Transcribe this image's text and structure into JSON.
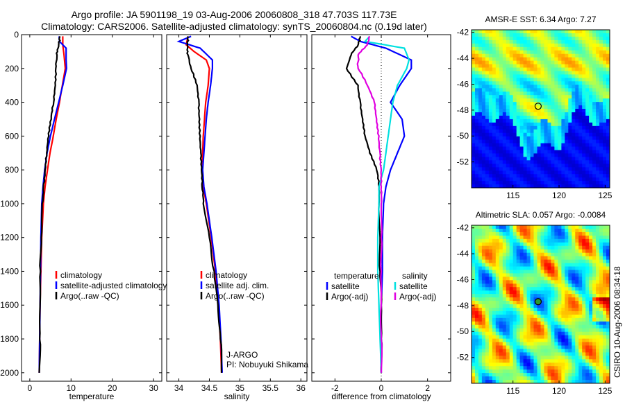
{
  "header": {
    "title_line1": "Argo profile: JA 5901198_19 03-Aug-2006 20060808_318 47.703S 117.73E",
    "title_line2": "Climatology: CARS2006. Satellite-adjusted climatology: synTS_20060804.nc (0.19d later)"
  },
  "side_label": "CSIRO 10-Aug-2006 08:34:18",
  "colors": {
    "climatology": "#ff0000",
    "satellite": "#0000ff",
    "argo": "#000000",
    "salinity_satellite": "#00e0e0",
    "salinity_argo": "#e000e0"
  },
  "chart_data": [
    {
      "type": "line",
      "id": "temperature",
      "xlabel": "temperature",
      "ylabel": "",
      "xlim": [
        -2,
        32
      ],
      "ylim": [
        2050,
        0
      ],
      "xticks": [
        0,
        10,
        20,
        30
      ],
      "yticks": [
        0,
        200,
        400,
        600,
        800,
        1000,
        1200,
        1400,
        1600,
        1800,
        2000
      ],
      "legend": {
        "position": "lower-right",
        "entries": [
          "climatology",
          "satellite-adjusted climatology",
          "Argo(..raw -QC)"
        ]
      },
      "series": [
        {
          "name": "climatology",
          "color": "#ff0000",
          "depth": [
            10,
            60,
            120,
            200,
            300,
            400,
            500,
            600,
            700,
            800,
            900,
            1000,
            1200,
            1400,
            1600,
            1800,
            2000
          ],
          "values": [
            8.0,
            8.0,
            8.3,
            8.6,
            7.9,
            7.2,
            6.4,
            5.7,
            4.9,
            4.3,
            3.7,
            3.3,
            2.9,
            2.7,
            2.5,
            2.4,
            2.3
          ]
        },
        {
          "name": "satellite-adjusted climatology",
          "color": "#0000ff",
          "depth": [
            10,
            40,
            80,
            150,
            200,
            300,
            400,
            500,
            600,
            700,
            800,
            900,
            1000,
            1200,
            1400,
            1600,
            1800,
            2000
          ],
          "values": [
            7.1,
            7.2,
            8.8,
            8.8,
            8.9,
            8.0,
            7.0,
            6.0,
            5.0,
            4.2,
            3.6,
            3.2,
            2.9,
            2.7,
            2.6,
            2.5,
            2.4,
            2.3
          ]
        },
        {
          "name": "Argo(..raw -QC)",
          "color": "#000000",
          "depth": [
            10,
            60,
            120,
            200,
            300,
            400,
            500,
            600,
            700,
            800,
            900,
            1000,
            1200,
            1400,
            1600,
            1800,
            2000
          ],
          "values": [
            7.3,
            7.0,
            6.6,
            6.3,
            6.2,
            5.8,
            5.2,
            4.6,
            4.1,
            3.7,
            3.3,
            3.0,
            2.8,
            2.6,
            2.5,
            2.4,
            2.3
          ]
        }
      ]
    },
    {
      "type": "line",
      "id": "salinity",
      "xlabel": "salinity",
      "ylabel": "",
      "xlim": [
        33.8,
        36.1
      ],
      "ylim": [
        2050,
        0
      ],
      "xticks": [
        34,
        34.5,
        35,
        35.5,
        36
      ],
      "legend": {
        "position": "lower-right",
        "entries": [
          "climatology",
          "satellite adj. clim.",
          "Argo(..raw -QC)"
        ]
      },
      "annotation": [
        "J-ARGO",
        "PI: Nobuyuki Shikama"
      ],
      "series": [
        {
          "name": "climatology",
          "color": "#ff0000",
          "depth": [
            10,
            60,
            100,
            150,
            200,
            300,
            400,
            500,
            600,
            700,
            800,
            900,
            1000,
            1200,
            1400,
            1600,
            1800,
            2000
          ],
          "values": [
            34.15,
            34.12,
            34.25,
            34.45,
            34.5,
            34.48,
            34.44,
            34.42,
            34.4,
            34.39,
            34.38,
            34.4,
            34.45,
            34.53,
            34.6,
            34.65,
            34.68,
            34.7
          ]
        },
        {
          "name": "satellite adj. clim.",
          "color": "#0000ff",
          "depth": [
            10,
            40,
            80,
            150,
            200,
            300,
            400,
            500,
            600,
            700,
            800,
            900,
            1000,
            1200,
            1400,
            1600,
            1800,
            2000
          ],
          "values": [
            34.2,
            34.0,
            34.35,
            34.55,
            34.55,
            34.52,
            34.48,
            34.45,
            34.43,
            34.41,
            34.39,
            34.41,
            34.46,
            34.54,
            34.61,
            34.66,
            34.69,
            34.71
          ]
        },
        {
          "name": "Argo(..raw -QC)",
          "color": "#000000",
          "depth": [
            10,
            60,
            120,
            200,
            300,
            400,
            500,
            600,
            700,
            800,
            900,
            1000,
            1200,
            1400,
            1600,
            1800,
            2000
          ],
          "values": [
            34.15,
            34.14,
            34.15,
            34.2,
            34.3,
            34.33,
            34.34,
            34.35,
            34.36,
            34.37,
            34.38,
            34.4,
            34.5,
            34.58,
            34.64,
            34.68,
            34.7
          ]
        }
      ]
    },
    {
      "type": "line",
      "id": "difference",
      "xlabel": "difference from climatology",
      "ylabel": "",
      "xlim": [
        -3,
        3
      ],
      "ylim": [
        2050,
        0
      ],
      "xticks": [
        -2,
        0,
        2
      ],
      "legend": {
        "position": "lower-center",
        "groups": [
          {
            "title": "temperature",
            "entries": [
              "satellite",
              "Argo(-adj)"
            ]
          },
          {
            "title": "salinity",
            "entries": [
              "satellite",
              "Argo(-adj)"
            ]
          }
        ]
      },
      "series": [
        {
          "name": "temperature satellite",
          "color": "#0000ff",
          "depth": [
            10,
            40,
            80,
            150,
            200,
            300,
            400,
            500,
            600,
            700,
            800,
            900,
            1000,
            1200,
            1400,
            1600,
            1800,
            2000
          ],
          "values": [
            -1.3,
            -0.9,
            0.2,
            1.3,
            1.3,
            0.8,
            0.4,
            0.9,
            1.0,
            0.7,
            0.4,
            0.2,
            0.1,
            0.05,
            0.05,
            0.0,
            0.0,
            0.0
          ]
        },
        {
          "name": "temperature Argo(-adj)",
          "color": "#000000",
          "depth": [
            10,
            60,
            120,
            200,
            300,
            400,
            500,
            600,
            700,
            800,
            900,
            1000,
            1200,
            1400,
            1600,
            1800,
            2000
          ],
          "values": [
            -0.9,
            -1.0,
            -1.3,
            -1.5,
            -1.0,
            -0.9,
            -0.8,
            -0.7,
            -0.5,
            -0.2,
            -0.1,
            -0.1,
            -0.05,
            -0.05,
            0.0,
            0.0,
            0.0
          ]
        },
        {
          "name": "salinity satellite",
          "color": "#00e0e0",
          "depth": [
            10,
            40,
            80,
            150,
            200,
            300,
            400,
            500,
            600,
            700,
            800,
            900,
            1000,
            1200,
            1400,
            1600,
            1800,
            2000
          ],
          "values": [
            -0.5,
            -0.7,
            1.0,
            1.2,
            1.1,
            0.7,
            0.5,
            0.4,
            0.3,
            0.2,
            0.1,
            -0.1,
            -0.1,
            -0.15,
            -0.15,
            -0.1,
            -0.05,
            0.0
          ]
        },
        {
          "name": "salinity Argo(-adj)",
          "color": "#e000e0",
          "depth": [
            10,
            60,
            120,
            200,
            300,
            400,
            500,
            600,
            700,
            800,
            900,
            1000,
            1200,
            1400,
            1600,
            1800,
            2000
          ],
          "values": [
            -0.5,
            -0.6,
            -1.0,
            -1.0,
            -0.6,
            -0.3,
            -0.2,
            -0.1,
            -0.05,
            0.0,
            0.0,
            0.0,
            0.0,
            0.0,
            0.0,
            0.0,
            0.0
          ]
        }
      ]
    },
    {
      "type": "heatmap",
      "id": "sst",
      "title": "AMSR-E SST: 6.34  Argo: 7.27",
      "xlim": [
        110.5,
        125.5
      ],
      "ylim": [
        -54,
        -41.8
      ],
      "xticks": [
        115,
        120,
        125
      ],
      "yticks": [
        -42,
        -44,
        -46,
        -48,
        -50,
        -52
      ],
      "marker": {
        "lon": 117.73,
        "lat": -47.7
      }
    },
    {
      "type": "heatmap",
      "id": "sla",
      "title": "Altimetric SLA: 0.057  Argo: -0.0084",
      "xlim": [
        110.5,
        125.5
      ],
      "ylim": [
        -54,
        -41.8
      ],
      "xticks": [
        115,
        120,
        125
      ],
      "yticks": [
        -42,
        -44,
        -46,
        -48,
        -50,
        -52
      ],
      "marker": {
        "lon": 117.73,
        "lat": -47.7
      }
    }
  ]
}
